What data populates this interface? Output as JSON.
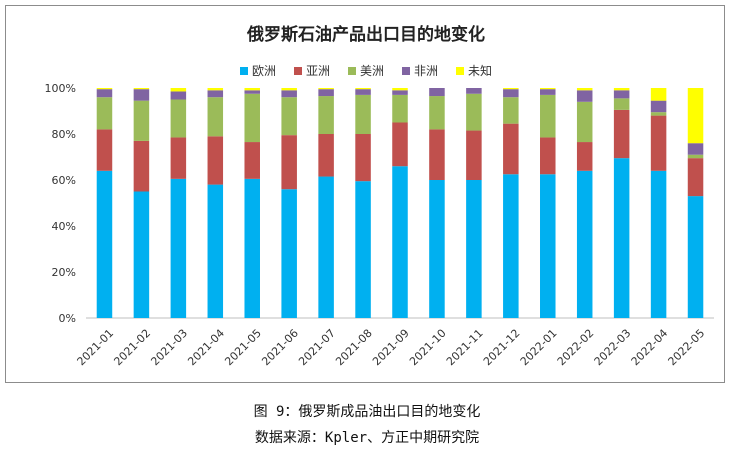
{
  "caption": {
    "figure": "图 9：俄罗斯成品油出口目的地变化",
    "source": "数据来源：Kpler、方正中期研究院"
  },
  "chart_data": {
    "type": "bar",
    "stacked": true,
    "title": "俄罗斯石油产品出口目的地变化",
    "xlabel": "",
    "ylabel": "",
    "ylim": [
      0,
      100
    ],
    "y_ticks": [
      "0%",
      "20%",
      "40%",
      "60%",
      "80%",
      "100%"
    ],
    "legend_position": "top",
    "categories": [
      "2021-01",
      "2021-02",
      "2021-03",
      "2021-04",
      "2021-05",
      "2021-06",
      "2021-07",
      "2021-08",
      "2021-09",
      "2021-10",
      "2021-11",
      "2021-12",
      "2022-01",
      "2022-02",
      "2022-03",
      "2022-04",
      "2022-05"
    ],
    "series": [
      {
        "name": "欧洲",
        "color": "#00b0f0",
        "values": [
          64,
          55,
          60.5,
          58,
          60.5,
          56,
          61.5,
          59.5,
          66,
          60,
          60,
          62.5,
          62.5,
          64,
          69.5,
          64,
          53
        ]
      },
      {
        "name": "亚洲",
        "color": "#c0504d",
        "values": [
          18,
          22,
          18,
          21,
          16,
          23.5,
          18.5,
          20.5,
          19,
          22,
          21.5,
          22,
          16,
          12.5,
          21,
          24,
          16.5
        ]
      },
      {
        "name": "美洲",
        "color": "#9bbb59",
        "values": [
          14,
          17.5,
          16.5,
          17,
          21,
          16.5,
          16.5,
          17,
          12,
          14.5,
          16,
          11.5,
          18.5,
          17.5,
          5,
          1.5,
          1.5
        ]
      },
      {
        "name": "非洲",
        "color": "#8064a2",
        "values": [
          3.5,
          5,
          3.5,
          3,
          1.5,
          3,
          3,
          2.5,
          2,
          3.5,
          2.5,
          3.5,
          2.5,
          5,
          3.5,
          5,
          5
        ]
      },
      {
        "name": "未知",
        "color": "#ffff00",
        "values": [
          0.5,
          0.5,
          1.5,
          1,
          1,
          1,
          0.5,
          0.5,
          1,
          0,
          0,
          0.5,
          0.5,
          1,
          1,
          5.5,
          24
        ]
      }
    ]
  }
}
